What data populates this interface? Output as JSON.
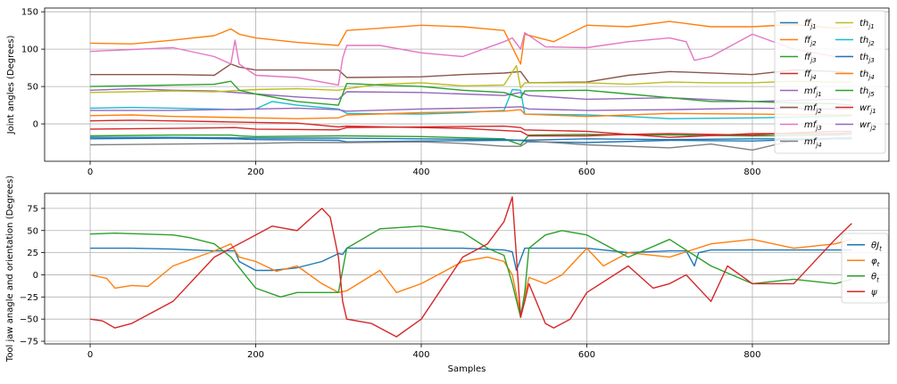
{
  "chart_data": [
    {
      "type": "line",
      "ylabel": "Joint angles (Degrees)",
      "xlabel": "",
      "xlim": [
        -55,
        965
      ],
      "ylim": [
        -50,
        155
      ],
      "xticks": [
        0,
        200,
        400,
        600,
        800
      ],
      "yticks": [
        0,
        50,
        100,
        150
      ],
      "ytick_labels": [
        "0",
        "50",
        "100",
        "150"
      ],
      "grid": true,
      "legend": "right",
      "series": [
        {
          "name": "ff_{j1}",
          "label_base": "ff",
          "label_sub": "j1",
          "color": "#1f77b4",
          "x": [
            0,
            100,
            175,
            200,
            300,
            310,
            400,
            500,
            520,
            530,
            600,
            700,
            800,
            880,
            920
          ],
          "y": [
            -20,
            -19,
            -20,
            -21,
            -22,
            -24,
            -23,
            -22,
            -22,
            -24,
            -25,
            -22,
            -23,
            -20,
            -18
          ]
        },
        {
          "name": "ff_{j2}",
          "label_base": "ff",
          "label_sub": "j2",
          "color": "#ff7f0e",
          "x": [
            0,
            50,
            100,
            150,
            170,
            180,
            200,
            250,
            300,
            310,
            350,
            400,
            450,
            500,
            520,
            525,
            560,
            600,
            650,
            700,
            750,
            800,
            850,
            900,
            920
          ],
          "y": [
            108,
            107,
            112,
            118,
            127,
            120,
            115,
            109,
            105,
            125,
            128,
            132,
            130,
            125,
            80,
            120,
            110,
            132,
            130,
            137,
            130,
            130,
            133,
            128,
            130
          ]
        },
        {
          "name": "ff_{j3}",
          "label_base": "ff",
          "label_sub": "j3",
          "color": "#2ca02c",
          "x": [
            0,
            100,
            170,
            180,
            200,
            300,
            310,
            400,
            500,
            520,
            530,
            600,
            700,
            800,
            900,
            920
          ],
          "y": [
            -16,
            -15,
            -15,
            -16,
            -17,
            -16,
            -16,
            -17,
            -20,
            -28,
            -15,
            -14,
            -15,
            -16,
            -15,
            -14
          ]
        },
        {
          "name": "ff_{j4}",
          "label_base": "ff",
          "label_sub": "j4",
          "color": "#d62728",
          "x": [
            0,
            100,
            175,
            200,
            300,
            310,
            400,
            500,
            520,
            525,
            600,
            700,
            800,
            900,
            920
          ],
          "y": [
            -7,
            -6,
            -5,
            -7,
            -8,
            -5,
            -4,
            -3,
            -5,
            -8,
            -10,
            -18,
            -13,
            -13,
            -12
          ]
        },
        {
          "name": "mf_{j1}",
          "label_base": "mf",
          "label_sub": "j1",
          "color": "#9467bd",
          "x": [
            0,
            50,
            100,
            150,
            200,
            250,
            300,
            310,
            400,
            450,
            500,
            520,
            530,
            600,
            700,
            800,
            900,
            920
          ],
          "y": [
            45,
            47,
            45,
            44,
            40,
            36,
            33,
            43,
            42,
            40,
            38,
            42,
            38,
            33,
            35,
            30,
            33,
            32
          ]
        },
        {
          "name": "mf_{j2}",
          "label_base": "mf",
          "label_sub": "j2",
          "color": "#8c564b",
          "x": [
            0,
            50,
            100,
            150,
            170,
            180,
            200,
            250,
            300,
            310,
            400,
            450,
            500,
            520,
            530,
            600,
            650,
            700,
            800,
            850,
            900,
            920
          ],
          "y": [
            66,
            66,
            66,
            65,
            80,
            76,
            72,
            72,
            72,
            62,
            63,
            66,
            68,
            70,
            55,
            56,
            65,
            70,
            66,
            72,
            70,
            68
          ]
        },
        {
          "name": "mf_{j3}",
          "label_base": "mf",
          "label_sub": "j3",
          "color": "#e377c2",
          "x": [
            0,
            100,
            150,
            170,
            175,
            180,
            200,
            250,
            300,
            305,
            310,
            350,
            400,
            450,
            500,
            510,
            520,
            525,
            550,
            600,
            650,
            700,
            720,
            730,
            750,
            800,
            850,
            900,
            920
          ],
          "y": [
            97,
            102,
            90,
            80,
            112,
            80,
            65,
            62,
            52,
            88,
            105,
            105,
            95,
            90,
            110,
            115,
            100,
            122,
            103,
            102,
            110,
            115,
            110,
            85,
            90,
            120,
            100,
            90,
            92
          ]
        },
        {
          "name": "mf_{j4}",
          "label_base": "mf",
          "label_sub": "j4",
          "color": "#7f7f7f",
          "x": [
            0,
            100,
            200,
            250,
            300,
            310,
            400,
            450,
            500,
            520,
            530,
            600,
            700,
            750,
            800,
            850,
            900,
            920
          ],
          "y": [
            -28,
            -27,
            -26,
            -25,
            -25,
            -25,
            -24,
            -26,
            -30,
            -30,
            -23,
            -28,
            -32,
            -27,
            -35,
            -22,
            -20,
            -18
          ]
        },
        {
          "name": "th_{j1}",
          "label_base": "th",
          "label_sub": "j1",
          "color": "#bcbd22",
          "x": [
            0,
            50,
            100,
            150,
            200,
            250,
            300,
            310,
            350,
            400,
            450,
            500,
            515,
            520,
            525,
            550,
            600,
            650,
            700,
            750,
            800,
            850,
            900,
            920
          ],
          "y": [
            42,
            43,
            44,
            43,
            46,
            47,
            45,
            47,
            53,
            55,
            51,
            52,
            78,
            48,
            55,
            55,
            55,
            53,
            56,
            55,
            55,
            57,
            56,
            56
          ]
        },
        {
          "name": "th_{j2}",
          "label_base": "th",
          "label_sub": "j2",
          "color": "#17becf",
          "x": [
            0,
            50,
            100,
            150,
            180,
            200,
            220,
            250,
            300,
            310,
            400,
            450,
            500,
            510,
            520,
            525,
            600,
            650,
            700,
            800,
            900,
            920
          ],
          "y": [
            21,
            22,
            21,
            20,
            19,
            20,
            30,
            25,
            20,
            14,
            13,
            15,
            18,
            46,
            45,
            13,
            12,
            10,
            7,
            8,
            10,
            11
          ]
        },
        {
          "name": "th_{j3}",
          "label_base": "th",
          "label_sub": "j3",
          "color": "#1f77b4",
          "x": [
            0,
            100,
            200,
            300,
            400,
            500,
            520,
            600,
            700,
            800,
            900,
            920
          ],
          "y": [
            -18,
            -18,
            -19,
            -19,
            -20,
            -21,
            -22,
            -20,
            -21,
            -20,
            -20,
            -20
          ]
        },
        {
          "name": "th_{j4}",
          "label_base": "th",
          "label_sub": "j4",
          "color": "#ff7f0e",
          "x": [
            0,
            50,
            100,
            150,
            200,
            250,
            300,
            310,
            400,
            450,
            500,
            520,
            525,
            600,
            700,
            800,
            900,
            920
          ],
          "y": [
            11,
            12,
            10,
            9,
            8,
            7,
            8,
            12,
            15,
            16,
            17,
            19,
            13,
            10,
            14,
            13,
            12,
            12
          ]
        },
        {
          "name": "th_{j5}",
          "label_base": "th",
          "label_sub": "j5",
          "color": "#2ca02c",
          "x": [
            0,
            50,
            100,
            150,
            170,
            180,
            200,
            250,
            300,
            310,
            350,
            400,
            450,
            500,
            520,
            525,
            600,
            650,
            700,
            750,
            800,
            850,
            900,
            920
          ],
          "y": [
            50,
            51,
            52,
            53,
            57,
            45,
            40,
            30,
            25,
            54,
            52,
            50,
            45,
            42,
            35,
            44,
            45,
            40,
            35,
            30,
            30,
            28,
            27,
            25
          ]
        },
        {
          "name": "wr_{j1}",
          "label_base": "wr",
          "label_sub": "j1",
          "color": "#d62728",
          "x": [
            0,
            50,
            100,
            150,
            200,
            250,
            300,
            310,
            400,
            450,
            500,
            520,
            530,
            600,
            650,
            700,
            750,
            800,
            850,
            900,
            920
          ],
          "y": [
            4,
            5,
            4,
            3,
            2,
            1,
            -4,
            -3,
            -5,
            -6,
            -9,
            -10,
            -16,
            -16,
            -14,
            -13,
            -14,
            -15,
            -12,
            -10,
            -10
          ]
        },
        {
          "name": "wr_{j2}",
          "label_base": "wr",
          "label_sub": "j2",
          "color": "#9467bd",
          "x": [
            0,
            100,
            200,
            250,
            300,
            310,
            400,
            500,
            520,
            530,
            600,
            700,
            800,
            900,
            920
          ],
          "y": [
            18,
            18,
            20,
            21,
            19,
            17,
            20,
            22,
            23,
            20,
            18,
            19,
            21,
            20,
            20
          ]
        }
      ]
    },
    {
      "type": "line",
      "ylabel": "Tool jaw anagle and orientation (Degrees)",
      "xlabel": "Samples",
      "xlim": [
        -55,
        965
      ],
      "ylim": [
        -78,
        92
      ],
      "xticks": [
        0,
        200,
        400,
        600,
        800
      ],
      "yticks": [
        -75,
        -50,
        -25,
        0,
        25,
        50,
        75
      ],
      "ytick_labels": [
        "−75",
        "−50",
        "−25",
        "0",
        "25",
        "50",
        "75"
      ],
      "grid": true,
      "legend": "right",
      "series": [
        {
          "name": "θJ_t",
          "label_base": "θJ",
          "label_sub": "t",
          "color": "#1f77b4",
          "x": [
            0,
            50,
            100,
            150,
            175,
            180,
            200,
            220,
            250,
            280,
            300,
            305,
            310,
            400,
            450,
            500,
            510,
            515,
            525,
            530,
            600,
            650,
            700,
            720,
            730,
            735,
            750,
            800,
            850,
            900,
            920
          ],
          "y": [
            30,
            30,
            29,
            27,
            27,
            15,
            5,
            5,
            8,
            15,
            24,
            23,
            30,
            30,
            30,
            28,
            26,
            5,
            30,
            30,
            30,
            25,
            27,
            27,
            10,
            25,
            28,
            28,
            28,
            28,
            28
          ]
        },
        {
          "name": "φ_t",
          "label_base": "φ",
          "label_sub": "t",
          "color": "#ff7f0e",
          "x": [
            0,
            20,
            30,
            50,
            70,
            100,
            150,
            170,
            180,
            200,
            225,
            250,
            280,
            300,
            310,
            350,
            370,
            400,
            450,
            480,
            500,
            510,
            520,
            530,
            550,
            570,
            600,
            620,
            650,
            700,
            750,
            800,
            850,
            900,
            920
          ],
          "y": [
            0,
            -4,
            -15,
            -12,
            -13,
            10,
            27,
            35,
            20,
            15,
            4,
            10,
            -10,
            -20,
            -18,
            5,
            -20,
            -10,
            15,
            20,
            15,
            0,
            -45,
            -3,
            -10,
            0,
            30,
            10,
            25,
            20,
            35,
            40,
            30,
            35,
            40
          ]
        },
        {
          "name": "θ_t",
          "label_base": "θ",
          "label_sub": "t",
          "color": "#2ca02c",
          "x": [
            0,
            30,
            100,
            120,
            150,
            170,
            200,
            230,
            250,
            300,
            310,
            350,
            400,
            450,
            480,
            500,
            510,
            520,
            525,
            530,
            550,
            570,
            600,
            650,
            700,
            750,
            800,
            850,
            900,
            920
          ],
          "y": [
            46,
            47,
            45,
            42,
            35,
            20,
            -15,
            -25,
            -20,
            -20,
            30,
            52,
            55,
            48,
            30,
            22,
            -10,
            -48,
            -20,
            30,
            45,
            50,
            45,
            20,
            40,
            10,
            -10,
            -5,
            -10,
            -5
          ]
        },
        {
          "name": "ψ",
          "label_base": "ψ",
          "label_sub": "",
          "color": "#d62728",
          "x": [
            0,
            15,
            30,
            50,
            100,
            150,
            200,
            220,
            250,
            280,
            290,
            300,
            305,
            310,
            340,
            370,
            400,
            450,
            480,
            500,
            510,
            520,
            525,
            530,
            550,
            560,
            580,
            600,
            650,
            680,
            700,
            720,
            750,
            770,
            800,
            850,
            900,
            920
          ],
          "y": [
            -50,
            -52,
            -60,
            -55,
            -30,
            20,
            45,
            55,
            50,
            75,
            65,
            20,
            -30,
            -50,
            -55,
            -70,
            -50,
            20,
            35,
            60,
            88,
            -48,
            -30,
            -10,
            -55,
            -60,
            -50,
            -20,
            10,
            -15,
            -10,
            0,
            -30,
            10,
            -10,
            -10,
            40,
            58
          ]
        }
      ]
    }
  ]
}
